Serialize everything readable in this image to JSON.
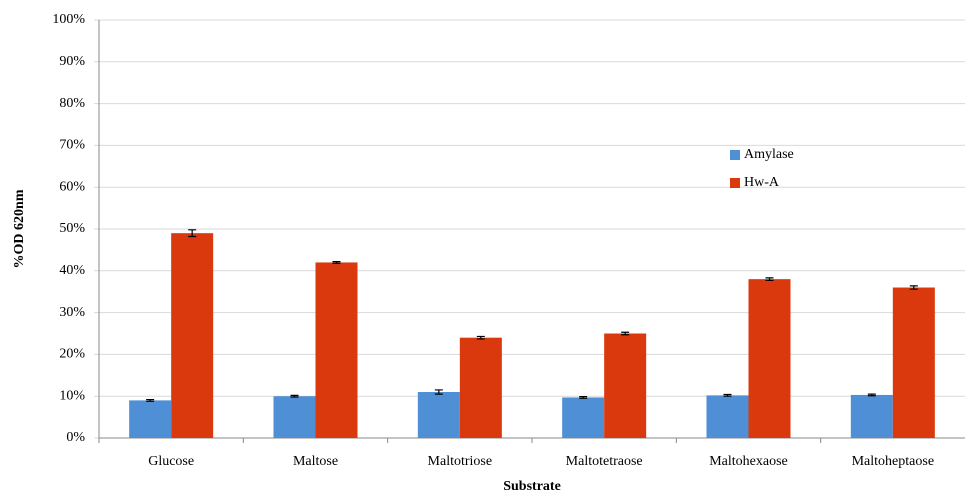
{
  "chart_data": {
    "type": "bar",
    "x_label": "Substrate",
    "y_label": "%OD 620nm",
    "categories": [
      "Glucose",
      "Maltose",
      "Maltotriose",
      "Maltotetraose",
      "Maltohexaose",
      "Maltoheptaose"
    ],
    "series": [
      {
        "name": "Amylase",
        "color": "#4f8fd6",
        "values": [
          9,
          10,
          11,
          9.7,
          10.2,
          10.3
        ],
        "errors": [
          0.2,
          0.2,
          0.5,
          0.2,
          0.2,
          0.2
        ]
      },
      {
        "name": "Hw-A",
        "color": "#d9390c",
        "values": [
          49,
          42,
          24,
          25,
          38,
          36
        ],
        "errors": [
          0.8,
          0.2,
          0.3,
          0.3,
          0.3,
          0.4
        ]
      }
    ],
    "ylim": [
      0,
      100
    ],
    "yticks": [
      {
        "value": 0,
        "label": "0%"
      },
      {
        "value": 10,
        "label": "10%"
      },
      {
        "value": 20,
        "label": "20%"
      },
      {
        "value": 30,
        "label": "30%"
      },
      {
        "value": 40,
        "label": "40%"
      },
      {
        "value": 50,
        "label": "50%"
      },
      {
        "value": 60,
        "label": "60%"
      },
      {
        "value": 70,
        "label": "70%"
      },
      {
        "value": 80,
        "label": "80%"
      },
      {
        "value": 90,
        "label": "90%"
      },
      {
        "value": 100,
        "label": "100%"
      }
    ],
    "grid": true,
    "legend": "right"
  }
}
